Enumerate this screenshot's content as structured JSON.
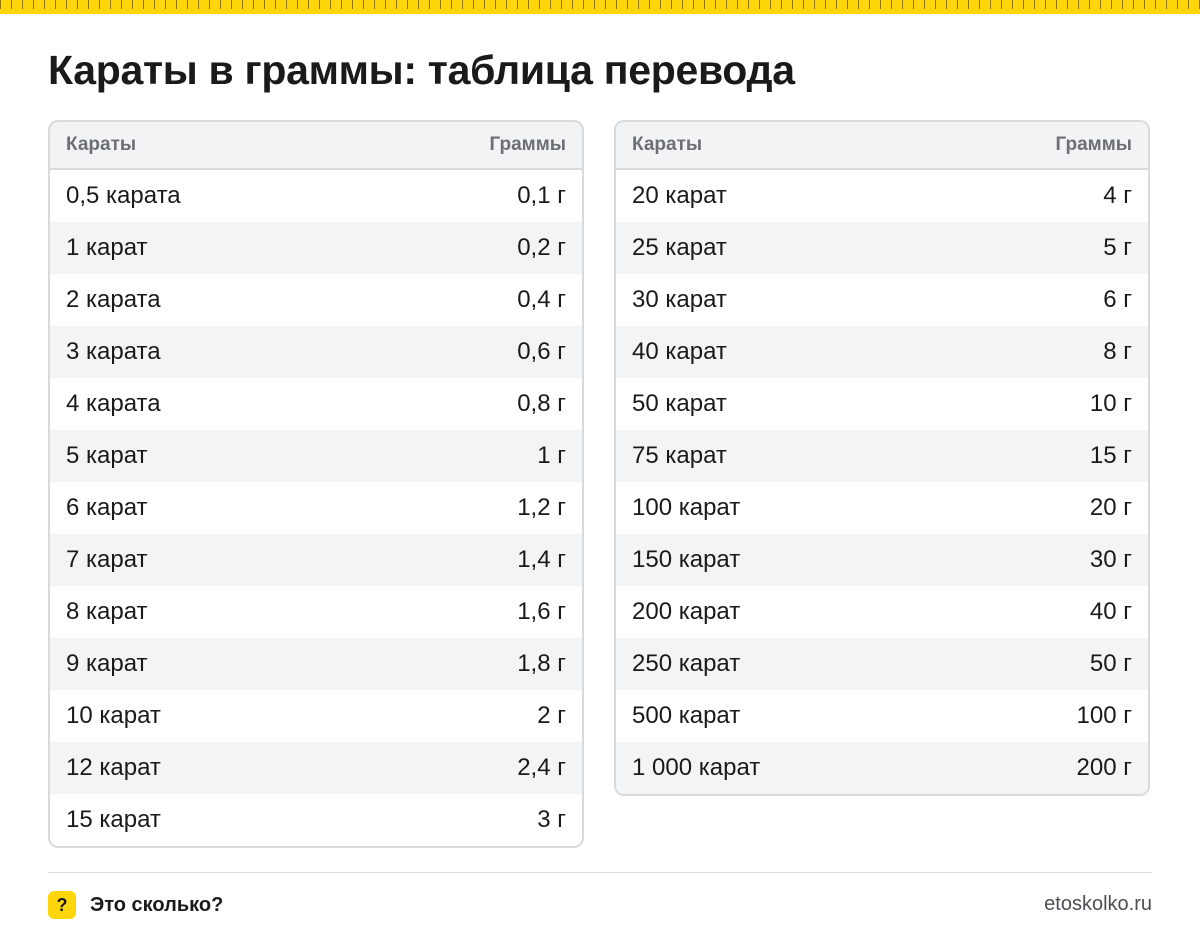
{
  "page": {
    "title": "Караты в граммы: таблица перевода"
  },
  "colors": {
    "accent": "#FFD60A",
    "header_bg": "#f2f3f5",
    "stripe_bg": "#f3f4f6",
    "border": "#d9dadc",
    "text": "#1a1a1a",
    "header_text": "#6b6f76"
  },
  "tables": [
    {
      "headers": {
        "carats": "Караты",
        "grams": "Граммы"
      },
      "rows": [
        {
          "carats": "0,5 карата",
          "grams": "0,1 г"
        },
        {
          "carats": "1 карат",
          "grams": "0,2 г"
        },
        {
          "carats": "2 карата",
          "grams": "0,4 г"
        },
        {
          "carats": "3 карата",
          "grams": "0,6 г"
        },
        {
          "carats": "4 карата",
          "grams": "0,8 г"
        },
        {
          "carats": "5 карат",
          "grams": "1 г"
        },
        {
          "carats": "6 карат",
          "grams": "1,2 г"
        },
        {
          "carats": "7 карат",
          "grams": "1,4 г"
        },
        {
          "carats": "8 карат",
          "grams": "1,6 г"
        },
        {
          "carats": "9 карат",
          "grams": "1,8 г"
        },
        {
          "carats": "10 карат",
          "grams": "2 г"
        },
        {
          "carats": "12 карат",
          "grams": "2,4 г"
        },
        {
          "carats": "15 карат",
          "grams": "3 г"
        }
      ]
    },
    {
      "headers": {
        "carats": "Караты",
        "grams": "Граммы"
      },
      "rows": [
        {
          "carats": "20 карат",
          "grams": "4 г"
        },
        {
          "carats": "25 карат",
          "grams": "5 г"
        },
        {
          "carats": "30 карат",
          "grams": "6 г"
        },
        {
          "carats": "40 карат",
          "grams": "8 г"
        },
        {
          "carats": "50 карат",
          "grams": "10 г"
        },
        {
          "carats": "75 карат",
          "grams": "15 г"
        },
        {
          "carats": "100 карат",
          "grams": "20 г"
        },
        {
          "carats": "150 карат",
          "grams": "30 г"
        },
        {
          "carats": "200 карат",
          "grams": "40 г"
        },
        {
          "carats": "250 карат",
          "grams": "50 г"
        },
        {
          "carats": "500 карат",
          "grams": "100 г"
        },
        {
          "carats": "1 000 карат",
          "grams": "200 г"
        }
      ]
    }
  ],
  "footer": {
    "brand_icon": "?",
    "brand_name": "Это сколько?",
    "site_url": "etoskolko.ru"
  }
}
